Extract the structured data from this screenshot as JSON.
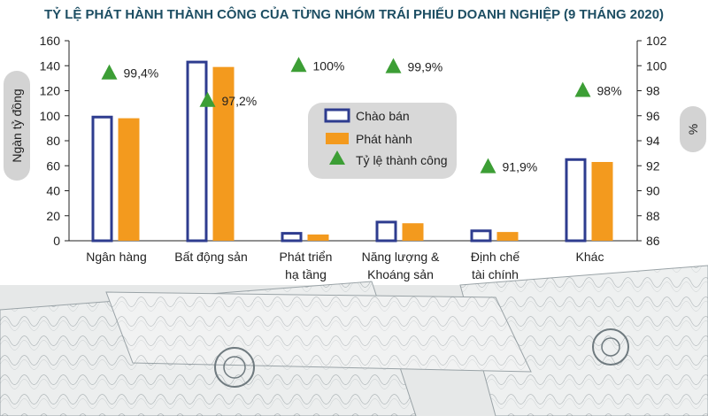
{
  "colors": {
    "offer": "#2e3c8f",
    "issued": "#f39a1e",
    "rate": "#3c9e35",
    "legend_bg": "#d8d8d8",
    "axis_pill": "#d3d3d3",
    "title": "#1d4e63"
  },
  "chart_data": {
    "type": "bar",
    "title": "TỶ LỆ PHÁT HÀNH THÀNH CÔNG CỦA TỪNG NHÓM TRÁI PHIẾU DOANH NGHIỆP (9 THÁNG 2020)",
    "ylabel": "Ngàn tỷ đồng",
    "y2label": "%",
    "ylim": [
      0,
      160
    ],
    "y2lim": [
      86,
      102
    ],
    "yticks": [
      "0",
      "20",
      "40",
      "60",
      "80",
      "100",
      "120",
      "140",
      "160"
    ],
    "y2ticks": [
      "86",
      "88",
      "90",
      "92",
      "94",
      "96",
      "98",
      "100",
      "102"
    ],
    "categories": [
      [
        "Ngân hàng"
      ],
      [
        "Bất động sản"
      ],
      [
        "Phát triển",
        "hạ tầng"
      ],
      [
        "Năng lượng &",
        "Khoáng sản"
      ],
      [
        "Định chế",
        "tài chính"
      ],
      [
        "Khác"
      ]
    ],
    "series": [
      {
        "name": "Chào bán",
        "type": "bar-outline",
        "values": [
          100,
          144,
          7,
          16,
          9,
          66
        ]
      },
      {
        "name": "Phát hành",
        "type": "bar",
        "values": [
          98,
          139,
          5,
          14,
          7,
          63
        ]
      },
      {
        "name": "Tỷ lệ thành công",
        "type": "marker",
        "axis": "right",
        "values": [
          99.4,
          97.2,
          100,
          99.9,
          91.9,
          98
        ]
      }
    ],
    "rate_labels": [
      "99,4%",
      "97,2%",
      "100%",
      "99,9%",
      "91,9%",
      "98%"
    ],
    "legend": {
      "placement": "center"
    },
    "grid": false
  }
}
